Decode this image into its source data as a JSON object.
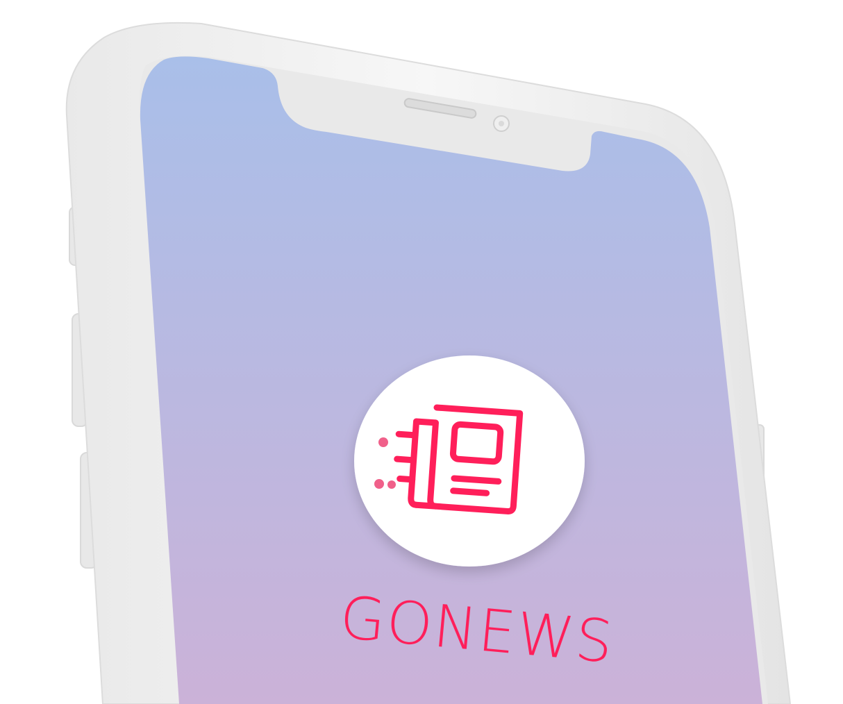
{
  "app": {
    "name": "GONEWS"
  },
  "icons": {
    "logo": "newspaper-icon"
  },
  "colors": {
    "accent": "#ff1f5a",
    "accent_soft": "#f0608a",
    "screen_gradient_top": "#a9bfe9",
    "screen_gradient_bottom": "#cbb2d8",
    "phone_frame": "#f4f4f4",
    "bezel": "#e6e6e6"
  }
}
